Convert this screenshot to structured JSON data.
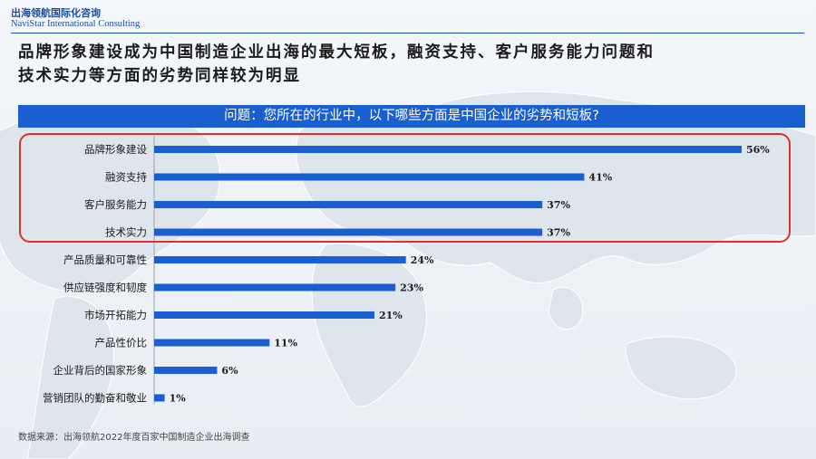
{
  "header": {
    "logo_cn": "出海领航国际化咨询",
    "logo_en": "NaviStar International Consulting",
    "headline_line1": "品牌形象建设成为中国制造企业出海的最大短板，融资支持、客户服务能力问题和",
    "headline_line2": "技术实力等方面的劣势同样较为明显"
  },
  "question": "问题：您所在的行业中，以下哪些方面是中国企业的劣势和短板?",
  "chart_data": {
    "type": "bar",
    "orientation": "horizontal",
    "categories": [
      "品牌形象建设",
      "融资支持",
      "客户服务能力",
      "技术实力",
      "产品质量和可靠性",
      "供应链强度和韧度",
      "市场开拓能力",
      "产品性价比",
      "企业背后的国家形象",
      "营销团队的勤奋和敬业"
    ],
    "values": [
      56,
      41,
      37,
      37,
      24,
      23,
      21,
      11,
      6,
      1
    ],
    "value_labels": [
      "56%",
      "41%",
      "37%",
      "37%",
      "24%",
      "23%",
      "21%",
      "11%",
      "6%",
      "1%"
    ],
    "highlighted_categories": [
      "品牌形象建设",
      "融资支持",
      "客户服务能力",
      "技术实力"
    ],
    "bar_color": "#1a5fcf",
    "highlight_box_color": "#e02d2d"
  },
  "footer": {
    "source": "数据来源：出海领航2022年度百家中国制造企业出海调查"
  }
}
